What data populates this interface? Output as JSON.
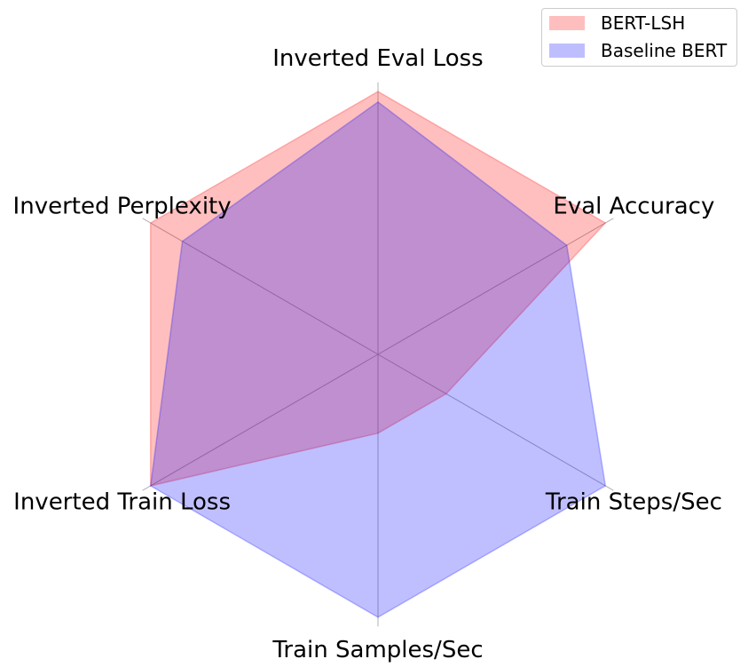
{
  "chart_data": {
    "type": "radar",
    "categories": [
      "Inverted Eval Loss",
      "Eval Accuracy",
      "Train Steps/Sec",
      "Train Samples/Sec",
      "Inverted Train Loss",
      "Inverted Perplexity"
    ],
    "rmax": 1.0,
    "grid": true,
    "legend_position": "top-right",
    "series": [
      {
        "name": "BERT-LSH",
        "values": [
          1.0,
          1.0,
          0.3,
          0.3,
          1.0,
          1.0
        ],
        "color": "#ff0000"
      },
      {
        "name": "Baseline BERT",
        "values": [
          0.96,
          0.83,
          1.0,
          1.0,
          1.0,
          0.86
        ],
        "color": "#0000ff"
      }
    ]
  }
}
